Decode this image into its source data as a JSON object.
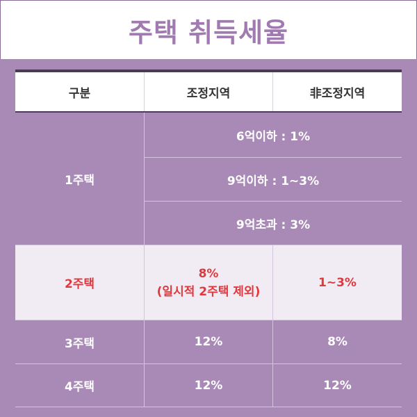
{
  "title": "주택 취득세율",
  "header": {
    "col1": "구분",
    "col2": "조정지역",
    "col3": "非조정지역"
  },
  "rows": {
    "house1": {
      "label": "1주택",
      "tier1": "6억이하 : 1%",
      "tier2": "9억이하 : 1~3%",
      "tier3": "9억초과 : 3%"
    },
    "house2": {
      "label": "2주택",
      "adjusted_line1": "8%",
      "adjusted_line2": "(일시적 2주택 제외)",
      "non_adjusted": "1~3%"
    },
    "house3": {
      "label": "3주택",
      "adjusted": "12%",
      "non_adjusted": "8%"
    },
    "house4": {
      "label": "4주택",
      "adjusted": "12%",
      "non_adjusted": "12%"
    }
  },
  "colors": {
    "background": "#a98ab7",
    "title": "#a07ab0",
    "highlight_text": "#e0383c",
    "highlight_row": "#f1ebf3"
  }
}
